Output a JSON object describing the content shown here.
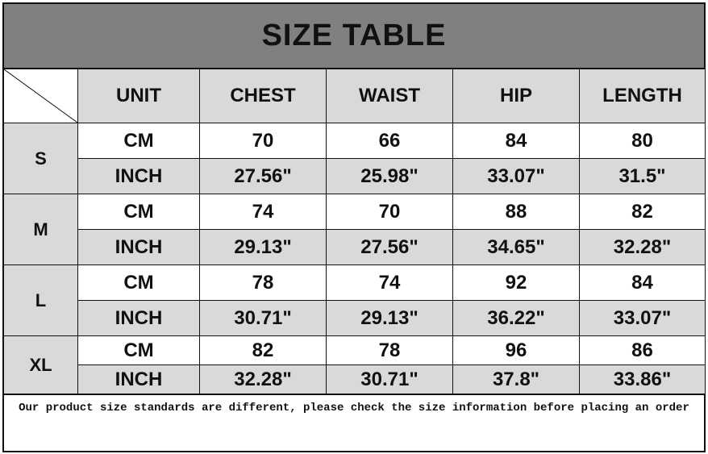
{
  "title": "SIZE TABLE",
  "headers": [
    "UNIT",
    "CHEST",
    "WAIST",
    "HIP",
    "LENGTH"
  ],
  "sizes": [
    {
      "size": "S",
      "cm": {
        "unit": "CM",
        "values": [
          "70",
          "66",
          "84",
          "80"
        ]
      },
      "inch": {
        "unit": "INCH",
        "values": [
          "27.56\"",
          "25.98\"",
          "33.07\"",
          "31.5\""
        ]
      }
    },
    {
      "size": "M",
      "cm": {
        "unit": "CM",
        "values": [
          "74",
          "70",
          "88",
          "82"
        ]
      },
      "inch": {
        "unit": "INCH",
        "values": [
          "29.13\"",
          "27.56\"",
          "34.65\"",
          "32.28\""
        ]
      }
    },
    {
      "size": "L",
      "cm": {
        "unit": "CM",
        "values": [
          "78",
          "74",
          "92",
          "84"
        ]
      },
      "inch": {
        "unit": "INCH",
        "values": [
          "30.71\"",
          "29.13\"",
          "36.22\"",
          "33.07\""
        ]
      }
    },
    {
      "size": "XL",
      "cm": {
        "unit": "CM",
        "values": [
          "82",
          "78",
          "96",
          "86"
        ]
      },
      "inch": {
        "unit": "INCH",
        "values": [
          "32.28\"",
          "30.71\"",
          "37.8\"",
          "33.86\""
        ]
      }
    }
  ],
  "note": "Our product size standards are different, please check the size information before placing an order",
  "colors": {
    "title_bg": "#808080",
    "header_bg": "#d9d9d9",
    "border": "#111111"
  }
}
